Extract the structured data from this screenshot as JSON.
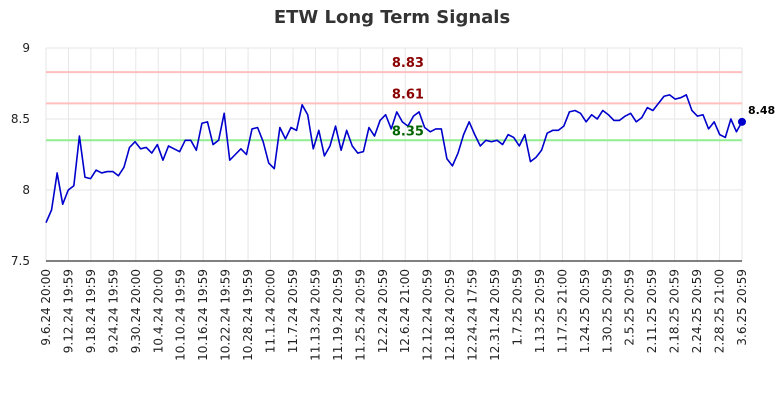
{
  "chart_data": {
    "type": "line",
    "title": "ETW Long Term Signals",
    "xlabel": "",
    "ylabel": "",
    "ylim": [
      7.5,
      9
    ],
    "y_ticks": [
      "7.5",
      "8",
      "8.5",
      "9"
    ],
    "x_tick_labels": [
      "9.6.24 20:00",
      "9.12.24 19:59",
      "9.18.24 19:59",
      "9.24.24 19:59",
      "9.30.24 20:00",
      "10.4.24 20:00",
      "10.10.24 19:59",
      "10.16.24 19:59",
      "10.22.24 19:59",
      "10.28.24 19:59",
      "11.1.24 20:00",
      "11.7.24 20:59",
      "11.13.24 20:59",
      "11.19.24 20:59",
      "11.25.24 20:59",
      "12.2.24 20:59",
      "12.6.24 21:00",
      "12.12.24 20:59",
      "12.18.24 20:59",
      "12.24.24 17:59",
      "12.31.24 20:59",
      "1.7.25 20:59",
      "1.13.25 20:59",
      "1.17.25 21:00",
      "1.24.25 20:59",
      "1.30.25 20:59",
      "2.5.25 20:59",
      "2.11.25 20:59",
      "2.18.25 20:59",
      "2.24.25 20:59",
      "2.28.25 21:00",
      "3.6.25 20:59"
    ],
    "values": [
      7.77,
      7.86,
      8.12,
      7.9,
      8.0,
      8.03,
      8.38,
      8.09,
      8.08,
      8.14,
      8.12,
      8.13,
      8.13,
      8.1,
      8.16,
      8.3,
      8.34,
      8.29,
      8.3,
      8.26,
      8.32,
      8.21,
      8.31,
      8.29,
      8.27,
      8.35,
      8.35,
      8.28,
      8.47,
      8.48,
      8.32,
      8.35,
      8.54,
      8.21,
      8.25,
      8.29,
      8.25,
      8.43,
      8.44,
      8.34,
      8.19,
      8.15,
      8.44,
      8.36,
      8.44,
      8.42,
      8.6,
      8.53,
      8.29,
      8.42,
      8.24,
      8.31,
      8.45,
      8.28,
      8.42,
      8.31,
      8.26,
      8.27,
      8.44,
      8.38,
      8.49,
      8.53,
      8.43,
      8.55,
      8.48,
      8.45,
      8.52,
      8.55,
      8.44,
      8.41,
      8.43,
      8.43,
      8.22,
      8.17,
      8.26,
      8.39,
      8.48,
      8.39,
      8.31,
      8.35,
      8.34,
      8.35,
      8.32,
      8.39,
      8.37,
      8.31,
      8.39,
      8.2,
      8.23,
      8.28,
      8.4,
      8.42,
      8.42,
      8.45,
      8.55,
      8.56,
      8.54,
      8.48,
      8.53,
      8.5,
      8.56,
      8.53,
      8.49,
      8.49,
      8.52,
      8.54,
      8.48,
      8.51,
      8.58,
      8.56,
      8.61,
      8.66,
      8.67,
      8.64,
      8.65,
      8.67,
      8.56,
      8.52,
      8.53,
      8.43,
      8.48,
      8.39,
      8.37,
      8.5,
      8.41,
      8.48
    ],
    "reference_lines": [
      {
        "value": 8.83,
        "label": "8.83",
        "color": "#ffbfbf",
        "label_color": "#8b0000"
      },
      {
        "value": 8.61,
        "label": "8.61",
        "color": "#ffbfbf",
        "label_color": "#8b0000"
      },
      {
        "value": 8.35,
        "label": "8.35",
        "color": "#90ee90",
        "label_color": "#006400"
      }
    ],
    "last_value_label": "8.48",
    "line_color": "#0000cc",
    "grid": true,
    "legend": "none"
  }
}
